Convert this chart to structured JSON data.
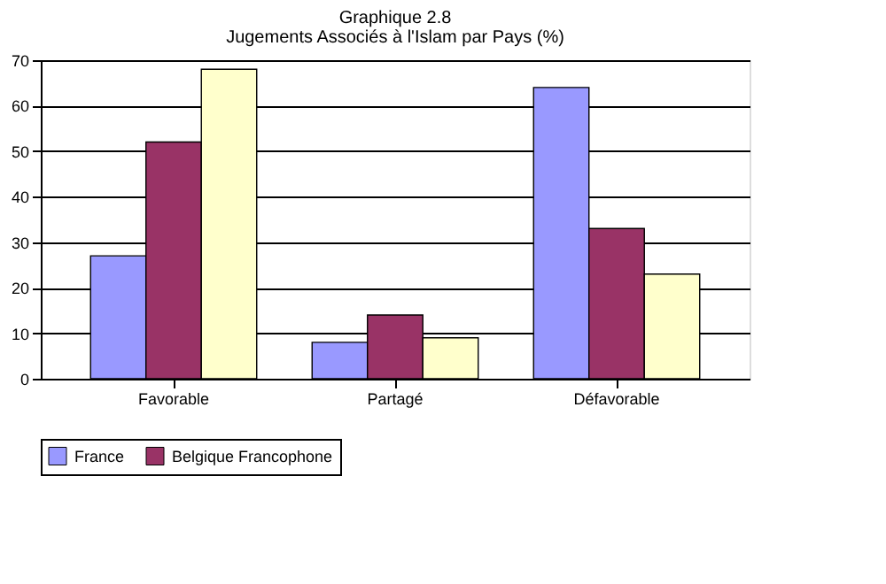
{
  "chart_data": {
    "type": "bar",
    "title": "Graphique 2.8",
    "subtitle": "Jugements Associés à l'Islam par Pays (%)",
    "categories": [
      "Favorable",
      "Partagé",
      "Défavorable"
    ],
    "series": [
      {
        "name": "France",
        "color": "#9999ff",
        "values": [
          27,
          8,
          64
        ]
      },
      {
        "name": "Belgique Francophone",
        "color": "#993366",
        "values": [
          52,
          14,
          33
        ]
      },
      {
        "color": "#ffffcc",
        "values": [
          68,
          9,
          23
        ]
      }
    ],
    "ylim": [
      0,
      70
    ],
    "yticks": [
      0,
      10,
      20,
      30,
      40,
      50,
      60,
      70
    ],
    "grid": "y",
    "legend": "bottom"
  }
}
